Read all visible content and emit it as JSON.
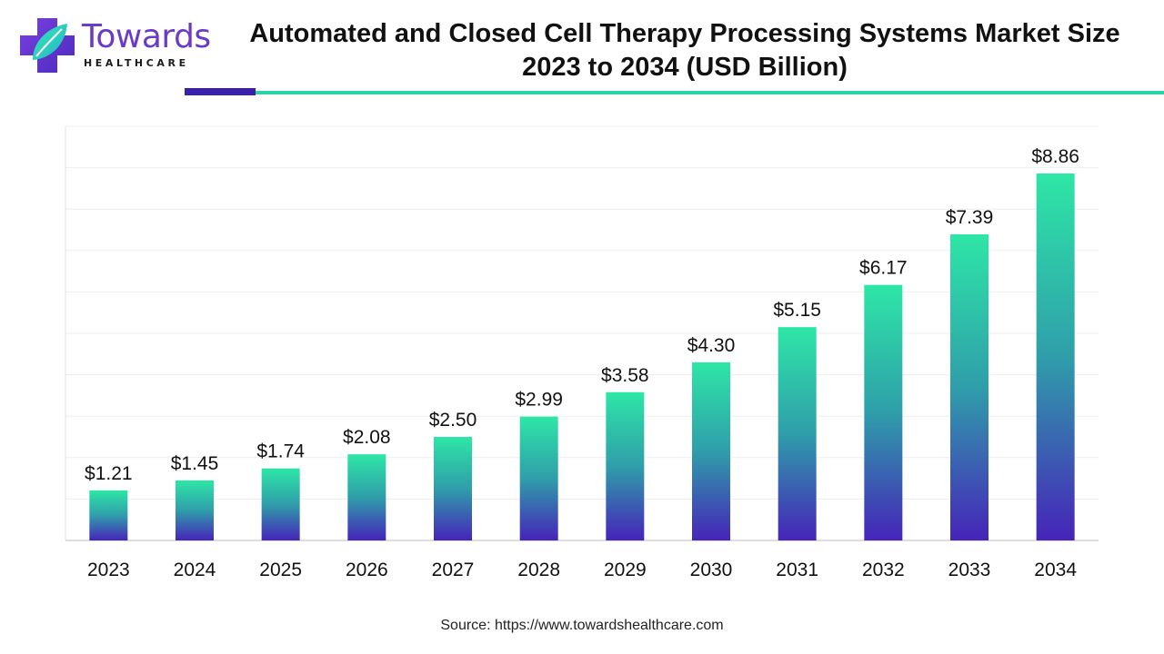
{
  "header": {
    "logo_word": "Towards",
    "logo_sub": "HEALTHCARE",
    "title_line1": "Automated and Closed Cell Therapy Processing Systems Market Size",
    "title_line2": "2023 to 2034 (USD Billion)"
  },
  "colors": {
    "bar_top": "#2ee6a6",
    "bar_mid": "#2f9eaa",
    "bar_bottom": "#4624b9",
    "brand_purple": "#6a3bc8",
    "accent_teal": "#2bd3a5"
  },
  "chart_data": {
    "type": "bar",
    "title": "Automated and Closed Cell Therapy Processing Systems Market Size 2023 to 2034 (USD Billion)",
    "categories": [
      "2023",
      "2024",
      "2025",
      "2026",
      "2027",
      "2028",
      "2029",
      "2030",
      "2031",
      "2032",
      "2033",
      "2034"
    ],
    "values": [
      1.21,
      1.45,
      1.74,
      2.08,
      2.5,
      2.99,
      3.58,
      4.3,
      5.15,
      6.17,
      7.39,
      8.86
    ],
    "value_labels": [
      "$1.21",
      "$1.45",
      "$1.74",
      "$2.08",
      "$2.50",
      "$2.99",
      "$3.58",
      "$4.30",
      "$5.15",
      "$6.17",
      "$7.39",
      "$8.86"
    ],
    "xlabel": "",
    "ylabel": "",
    "ylim": [
      0,
      10
    ],
    "grid": true,
    "legend": "none"
  },
  "footer": {
    "source": "Source: https://www.towardshealthcare.com"
  }
}
